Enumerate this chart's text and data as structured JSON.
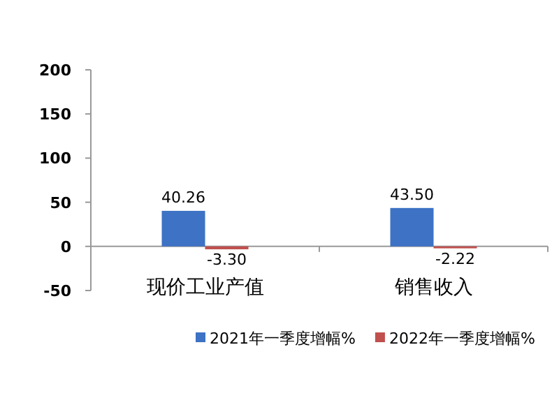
{
  "chart_data": {
    "type": "bar",
    "categories": [
      "现价工业产值",
      "销售收入"
    ],
    "series": [
      {
        "name": "2021年一季度增幅%",
        "color": "#3d72c4",
        "values": [
          40.26,
          43.5
        ],
        "value_labels": [
          "40.26",
          "43.50"
        ]
      },
      {
        "name": "2022年一季度增幅%",
        "color": "#c0504d",
        "values": [
          -3.3,
          -2.22
        ],
        "value_labels": [
          "-3.30",
          "-2.22"
        ]
      }
    ],
    "ylim": [
      -50,
      200
    ],
    "yticks": [
      -50,
      0,
      50,
      100,
      150,
      200
    ],
    "grid": false,
    "legend": "bottom"
  }
}
